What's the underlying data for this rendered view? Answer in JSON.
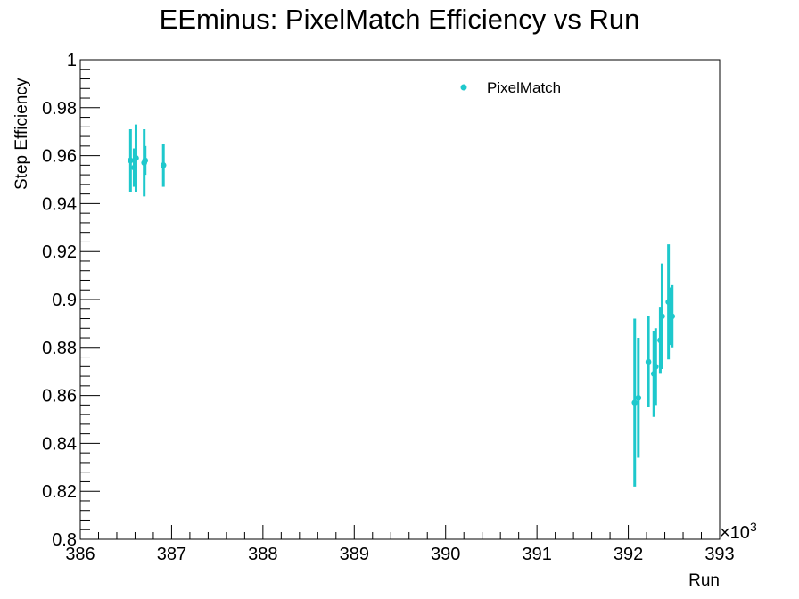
{
  "chart_data": {
    "type": "scatter",
    "title": "EEminus: PixelMatch Efficiency vs Run",
    "xlabel": "Run",
    "ylabel": "Step Efficiency",
    "x_multiplier_label": "×10",
    "x_multiplier_exponent": "3",
    "xlim": [
      386,
      393
    ],
    "ylim": [
      0.8,
      1.0
    ],
    "x_ticks": [
      386,
      387,
      388,
      389,
      390,
      391,
      392,
      393
    ],
    "x_tick_labels": [
      "386",
      "387",
      "388",
      "389",
      "390",
      "391",
      "392",
      "393"
    ],
    "y_ticks": [
      0.8,
      0.82,
      0.84,
      0.86,
      0.88,
      0.9,
      0.92,
      0.94,
      0.96,
      0.98,
      1.0
    ],
    "y_tick_labels": [
      "0.8",
      "0.82",
      "0.84",
      "0.86",
      "0.88",
      "0.9",
      "0.92",
      "0.94",
      "0.96",
      "0.98",
      "1"
    ],
    "legend_position": "top-right",
    "series": [
      {
        "name": "PixelMatch",
        "color": "#1ec8cc",
        "points": [
          {
            "x": 386.55,
            "y": 0.958,
            "err": 0.013
          },
          {
            "x": 386.59,
            "y": 0.955,
            "err": 0.008
          },
          {
            "x": 386.61,
            "y": 0.959,
            "err": 0.014
          },
          {
            "x": 386.7,
            "y": 0.957,
            "err": 0.014
          },
          {
            "x": 386.71,
            "y": 0.958,
            "err": 0.006
          },
          {
            "x": 386.91,
            "y": 0.956,
            "err": 0.009
          },
          {
            "x": 392.07,
            "y": 0.857,
            "err": 0.035
          },
          {
            "x": 392.11,
            "y": 0.859,
            "err": 0.025
          },
          {
            "x": 392.22,
            "y": 0.874,
            "err": 0.019
          },
          {
            "x": 392.28,
            "y": 0.869,
            "err": 0.018
          },
          {
            "x": 392.3,
            "y": 0.872,
            "err": 0.016
          },
          {
            "x": 392.35,
            "y": 0.883,
            "err": 0.014
          },
          {
            "x": 392.37,
            "y": 0.893,
            "err": 0.022
          },
          {
            "x": 392.44,
            "y": 0.899,
            "err": 0.024
          },
          {
            "x": 392.46,
            "y": 0.893,
            "err": 0.012
          },
          {
            "x": 392.48,
            "y": 0.893,
            "err": 0.013
          }
        ]
      }
    ]
  }
}
